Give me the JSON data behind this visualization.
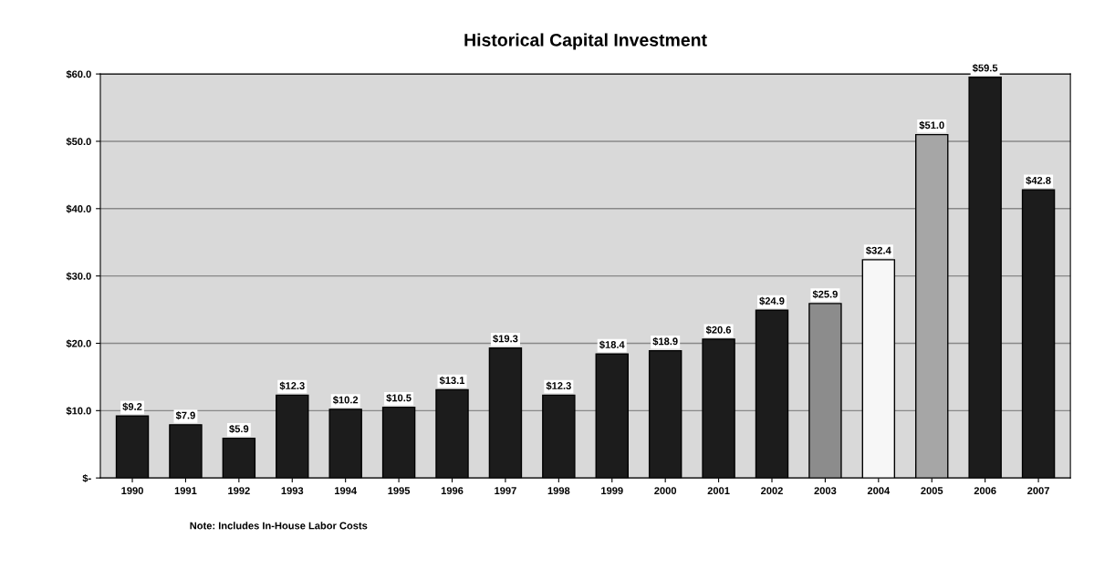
{
  "chart_data": {
    "type": "bar",
    "title": "Historical Capital Investment",
    "categories": [
      "1990",
      "1991",
      "1992",
      "1993",
      "1994",
      "1995",
      "1996",
      "1997",
      "1998",
      "1999",
      "2000",
      "2001",
      "2002",
      "2003",
      "2004",
      "2005",
      "2006",
      "2007"
    ],
    "values": [
      9.2,
      7.9,
      5.9,
      12.3,
      10.2,
      10.5,
      13.1,
      19.3,
      12.3,
      18.4,
      18.9,
      20.6,
      24.9,
      25.9,
      32.4,
      51.0,
      59.5,
      42.8
    ],
    "colors": [
      "#1c1c1c",
      "#1c1c1c",
      "#1c1c1c",
      "#1c1c1c",
      "#1c1c1c",
      "#1c1c1c",
      "#1c1c1c",
      "#1c1c1c",
      "#1c1c1c",
      "#1c1c1c",
      "#1c1c1c",
      "#1c1c1c",
      "#1c1c1c",
      "#8c8c8c",
      "#f7f7f7",
      "#a6a6a6",
      "#1c1c1c",
      "#1c1c1c"
    ],
    "value_labels": [
      "$9.2",
      "$7.9",
      "$5.9",
      "$12.3",
      "$10.2",
      "$10.5",
      "$13.1",
      "$19.3",
      "$12.3",
      "$18.4",
      "$18.9",
      "$20.6",
      "$24.9",
      "$25.9",
      "$32.4",
      "$51.0",
      "$59.5",
      "$42.8"
    ],
    "ylim": [
      0,
      60
    ],
    "yticks": [
      {
        "value": 0,
        "label": "$-"
      },
      {
        "value": 10,
        "label": "$10.0"
      },
      {
        "value": 20,
        "label": "$20.0"
      },
      {
        "value": 30,
        "label": "$30.0"
      },
      {
        "value": 40,
        "label": "$40.0"
      },
      {
        "value": 50,
        "label": "$50.0"
      },
      {
        "value": 60,
        "label": "$60.0"
      }
    ],
    "grid": "y",
    "annotations": [
      "Note: Includes In-House Labor Costs"
    ]
  }
}
